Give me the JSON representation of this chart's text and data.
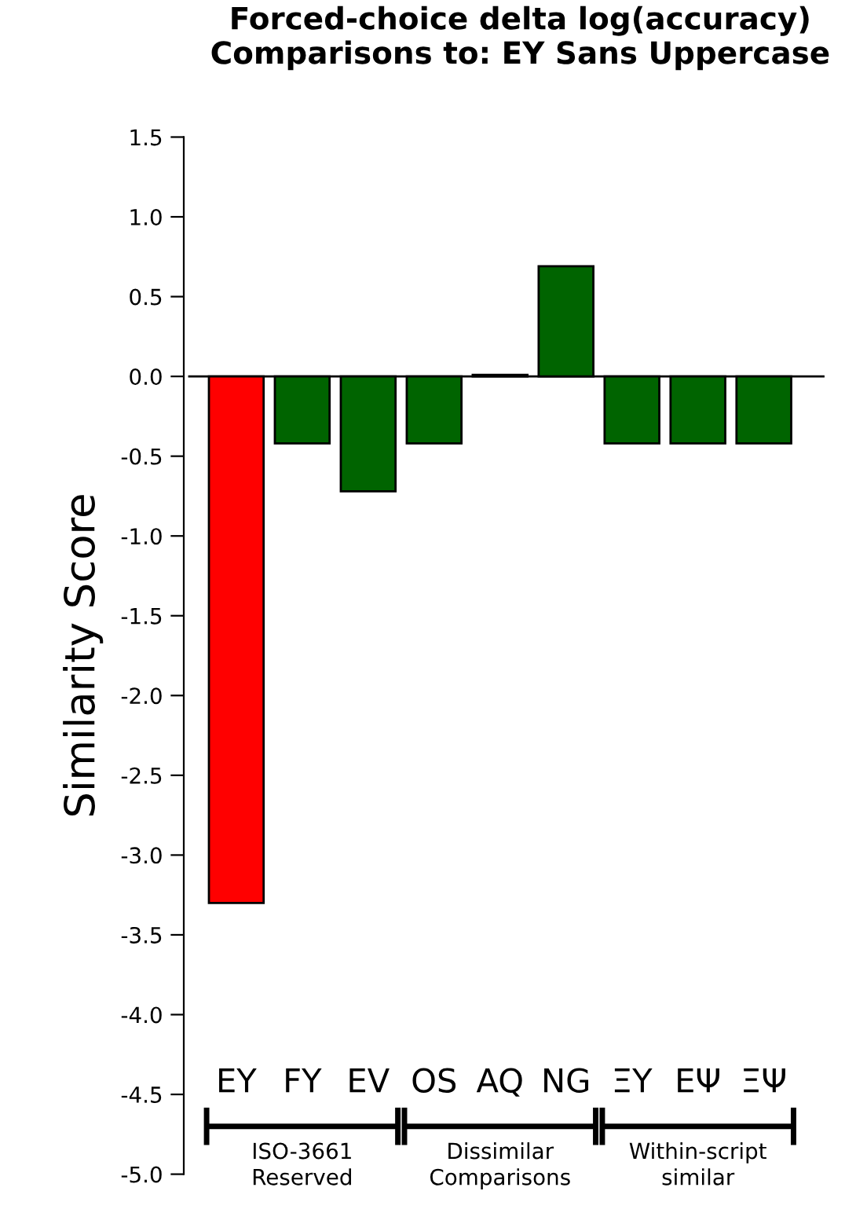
{
  "chart_data": {
    "type": "bar",
    "title": "Forced-choice delta log(accuracy)\nComparisons to: EY Sans Uppercase",
    "ylabel": "Similarity Score",
    "categories": [
      "EY",
      "FY",
      "EV",
      "OS",
      "AQ",
      "NG",
      "ΞY",
      "EΨ",
      "ΞΨ"
    ],
    "values": [
      -3.3,
      -0.42,
      -0.72,
      -0.42,
      0.01,
      0.69,
      -0.42,
      -0.42,
      -0.42
    ],
    "colors": [
      "#ff0000",
      "#006400",
      "#006400",
      "#006400",
      "#006400",
      "#006400",
      "#006400",
      "#006400",
      "#006400"
    ],
    "ylim": [
      -5.0,
      1.5
    ],
    "yticks": [
      {
        "value": -5,
        "label": "-5.0"
      },
      -4.5,
      {
        "value": -4,
        "label": "-4.0"
      },
      -3.5,
      {
        "value": -3,
        "label": "-3.0"
      },
      -2.5,
      {
        "value": -2,
        "label": "-2.0"
      },
      -1.5,
      {
        "value": -1,
        "label": "-1.0"
      },
      -0.5,
      {
        "value": 0,
        "label": "0.0"
      },
      0.5,
      {
        "value": 1,
        "label": "1.0"
      },
      1.5
    ],
    "ref_lines": [
      {
        "axis": "y",
        "value": 0,
        "color": "#000000"
      }
    ],
    "annotations": [
      "ISO-3661\nReserved",
      "Dissimilar\nComparisons",
      "Within-script\nsimilar"
    ],
    "grid": false
  }
}
